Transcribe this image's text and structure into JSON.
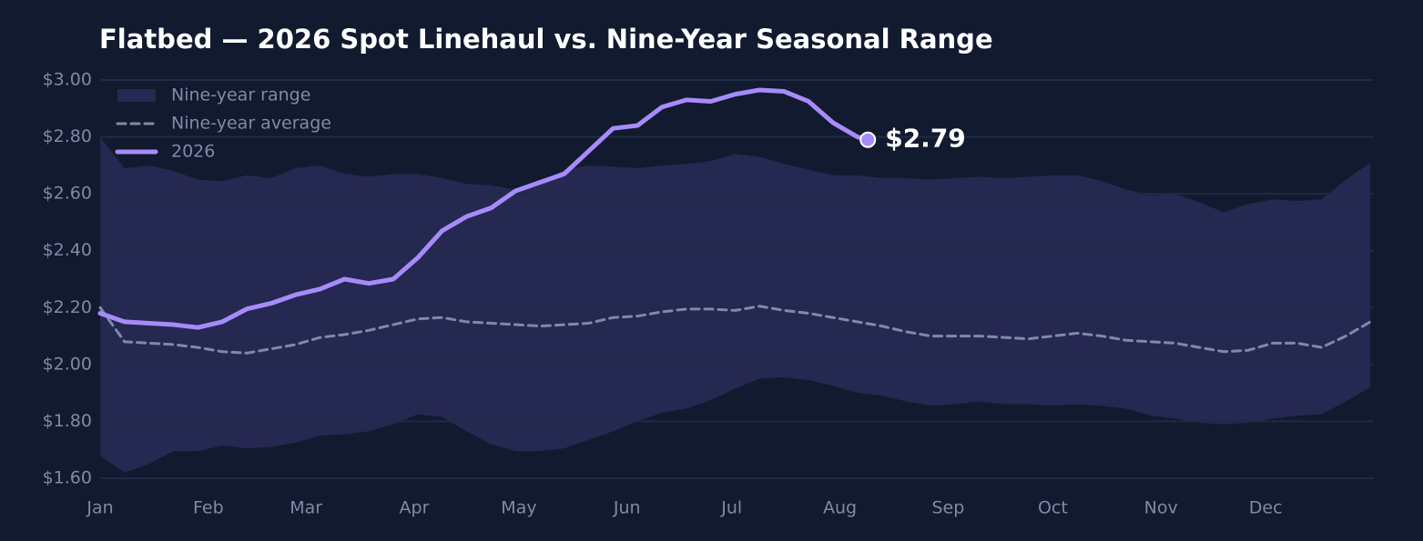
{
  "chart_data": {
    "type": "line",
    "title": "Flatbed — 2026 Spot Linehaul vs. Nine-Year Seasonal Range",
    "x": [
      0,
      7,
      14,
      21,
      28,
      35,
      42,
      49,
      56,
      63,
      70,
      77,
      84,
      91,
      98,
      105,
      112,
      119,
      126,
      133,
      140,
      147,
      154,
      161,
      168,
      175,
      182,
      189,
      196,
      203,
      210,
      217,
      224,
      231,
      238,
      245,
      252,
      259,
      266,
      273,
      280,
      287,
      294,
      301,
      308,
      315,
      322,
      329,
      336,
      343,
      350,
      357,
      364
    ],
    "xlim": [
      0,
      365
    ],
    "xticks": [
      {
        "value": 0,
        "label": "Jan"
      },
      {
        "value": 31,
        "label": "Feb"
      },
      {
        "value": 59,
        "label": "Mar"
      },
      {
        "value": 90,
        "label": "Apr"
      },
      {
        "value": 120,
        "label": "May"
      },
      {
        "value": 151,
        "label": "Jun"
      },
      {
        "value": 181,
        "label": "Jul"
      },
      {
        "value": 212,
        "label": "Aug"
      },
      {
        "value": 243,
        "label": "Sep"
      },
      {
        "value": 273,
        "label": "Oct"
      },
      {
        "value": 304,
        "label": "Nov"
      },
      {
        "value": 334,
        "label": "Dec"
      }
    ],
    "ylim": [
      1.6,
      3.0
    ],
    "yticks": [
      {
        "value": 1.6,
        "label": "$1.60"
      },
      {
        "value": 1.8,
        "label": "$1.80"
      },
      {
        "value": 2.0,
        "label": "$2.00"
      },
      {
        "value": 2.2,
        "label": "$2.20"
      },
      {
        "value": 2.4,
        "label": "$2.40"
      },
      {
        "value": 2.6,
        "label": "$2.60"
      },
      {
        "value": 2.8,
        "label": "$2.80"
      },
      {
        "value": 3.0,
        "label": "$3.00"
      }
    ],
    "grid": true,
    "legend": "upper-left",
    "band": {
      "name": "Nine-year range",
      "color": "#252850",
      "upper": [
        2.8,
        2.69,
        2.7,
        2.68,
        2.65,
        2.645,
        2.665,
        2.655,
        2.69,
        2.7,
        2.67,
        2.66,
        2.67,
        2.67,
        2.655,
        2.635,
        2.63,
        2.615,
        2.635,
        2.685,
        2.7,
        2.695,
        2.69,
        2.7,
        2.705,
        2.715,
        2.74,
        2.73,
        2.705,
        2.685,
        2.665,
        2.665,
        2.655,
        2.655,
        2.65,
        2.655,
        2.66,
        2.655,
        2.66,
        2.665,
        2.665,
        2.645,
        2.615,
        2.595,
        2.6,
        2.57,
        2.535,
        2.565,
        2.58,
        2.575,
        2.58,
        2.65,
        2.71
      ],
      "lower": [
        1.68,
        1.62,
        1.65,
        1.695,
        1.695,
        1.715,
        1.705,
        1.71,
        1.725,
        1.75,
        1.755,
        1.765,
        1.79,
        1.825,
        1.815,
        1.765,
        1.72,
        1.695,
        1.695,
        1.705,
        1.735,
        1.765,
        1.8,
        1.83,
        1.845,
        1.875,
        1.915,
        1.95,
        1.955,
        1.945,
        1.925,
        1.9,
        1.89,
        1.87,
        1.855,
        1.86,
        1.87,
        1.86,
        1.86,
        1.855,
        1.86,
        1.855,
        1.845,
        1.82,
        1.81,
        1.795,
        1.79,
        1.795,
        1.81,
        1.82,
        1.825,
        1.87,
        1.92
      ]
    },
    "series": [
      {
        "name": "Nine-year average",
        "color": "#7f8aa8",
        "dash": true,
        "values": [
          2.2,
          2.08,
          2.075,
          2.07,
          2.06,
          2.045,
          2.04,
          2.055,
          2.07,
          2.095,
          2.105,
          2.12,
          2.14,
          2.16,
          2.165,
          2.15,
          2.145,
          2.14,
          2.135,
          2.14,
          2.145,
          2.165,
          2.17,
          2.185,
          2.195,
          2.195,
          2.19,
          2.205,
          2.19,
          2.18,
          2.165,
          2.15,
          2.135,
          2.115,
          2.1,
          2.1,
          2.1,
          2.095,
          2.09,
          2.1,
          2.11,
          2.1,
          2.085,
          2.08,
          2.075,
          2.06,
          2.045,
          2.05,
          2.075,
          2.075,
          2.06,
          2.1,
          2.15
        ]
      },
      {
        "name": "2026",
        "color": "#a78bfa",
        "x": [
          0,
          7,
          14,
          21,
          28,
          35,
          42,
          49,
          56,
          63,
          70,
          77,
          84,
          91,
          98,
          105,
          112,
          119,
          126,
          133,
          140,
          147,
          154,
          161,
          168,
          175,
          182,
          189,
          196,
          203,
          210,
          217,
          220
        ],
        "values": [
          2.18,
          2.15,
          2.145,
          2.14,
          2.13,
          2.15,
          2.195,
          2.215,
          2.245,
          2.265,
          2.3,
          2.285,
          2.3,
          2.375,
          2.47,
          2.52,
          2.55,
          2.61,
          2.64,
          2.67,
          2.75,
          2.83,
          2.84,
          2.905,
          2.93,
          2.925,
          2.95,
          2.965,
          2.96,
          2.925,
          2.85,
          2.8,
          2.79
        ]
      }
    ],
    "annotations": [
      {
        "text": "$2.79"
      }
    ]
  }
}
